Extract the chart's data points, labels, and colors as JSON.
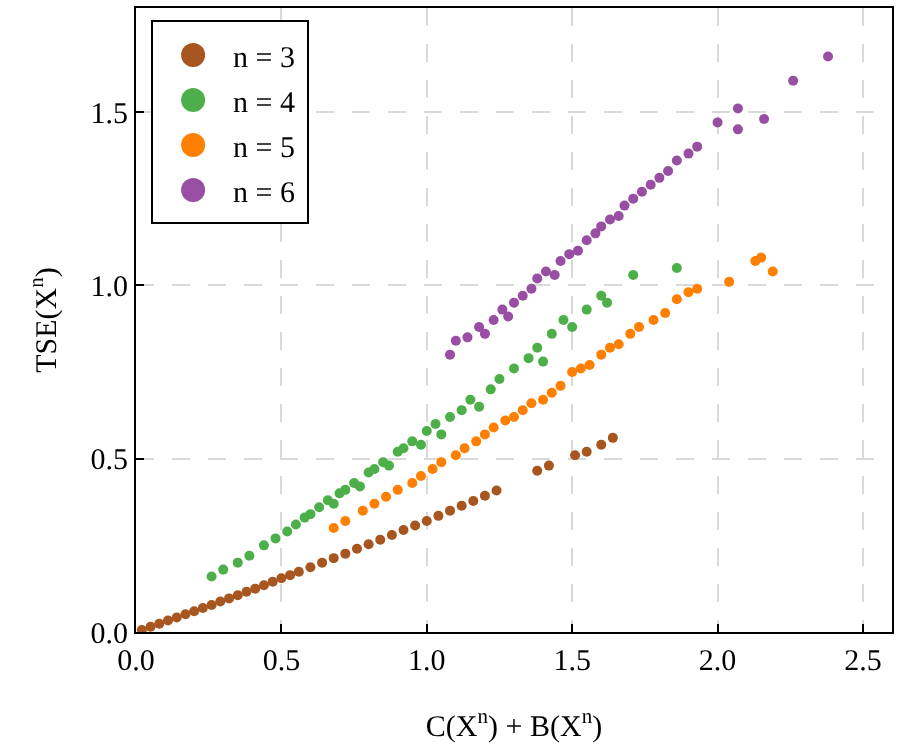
{
  "chart_data": {
    "type": "scatter",
    "xlabel": "C(X$^{n}$) + B(X$^{n}$)",
    "ylabel": "TSE(X$^{n}$)",
    "xlim": [
      0,
      2.6
    ],
    "ylim": [
      0,
      1.8
    ],
    "xticks": [
      {
        "value": 0,
        "label": "0.0"
      },
      0.5,
      {
        "value": 1,
        "label": "1.0"
      },
      1.5,
      {
        "value": 2,
        "label": "2.0"
      },
      2.5
    ],
    "yticks": [
      {
        "value": 0,
        "label": "0.0"
      },
      0.5,
      {
        "value": 1,
        "label": "1.0"
      },
      1.5
    ],
    "grid": true,
    "legend": "top left",
    "marker": "circle",
    "series": [
      {
        "name": "n = 3",
        "color": "#a6561e",
        "x": [
          0.02,
          0.05,
          0.08,
          0.11,
          0.14,
          0.17,
          0.2,
          0.23,
          0.26,
          0.29,
          0.32,
          0.35,
          0.38,
          0.41,
          0.44,
          0.47,
          0.5,
          0.53,
          0.56,
          0.6,
          0.64,
          0.68,
          0.72,
          0.76,
          0.8,
          0.84,
          0.88,
          0.92,
          0.96,
          1.0,
          1.04,
          1.08,
          1.12,
          1.16,
          1.2,
          1.24,
          1.38,
          1.42,
          1.51,
          1.55,
          1.6,
          1.64
        ],
        "values": [
          0.006,
          0.015,
          0.024,
          0.033,
          0.042,
          0.051,
          0.06,
          0.069,
          0.078,
          0.088,
          0.097,
          0.106,
          0.116,
          0.125,
          0.135,
          0.145,
          0.155,
          0.164,
          0.174,
          0.187,
          0.2,
          0.213,
          0.226,
          0.24,
          0.253,
          0.266,
          0.28,
          0.294,
          0.307,
          0.32,
          0.335,
          0.35,
          0.364,
          0.378,
          0.393,
          0.408,
          0.465,
          0.48,
          0.51,
          0.52,
          0.54,
          0.56
        ]
      },
      {
        "name": "n = 4",
        "color": "#4daf4a",
        "x": [
          0.26,
          0.3,
          0.35,
          0.39,
          0.44,
          0.48,
          0.52,
          0.55,
          0.58,
          0.6,
          0.63,
          0.66,
          0.68,
          0.7,
          0.72,
          0.75,
          0.77,
          0.8,
          0.82,
          0.85,
          0.87,
          0.9,
          0.92,
          0.95,
          0.98,
          1.0,
          1.03,
          1.05,
          1.08,
          1.12,
          1.15,
          1.18,
          1.22,
          1.25,
          1.3,
          1.35,
          1.4,
          1.38,
          1.43,
          1.47,
          1.5,
          1.55,
          1.6,
          1.62,
          1.71,
          1.86
        ],
        "values": [
          0.16,
          0.18,
          0.2,
          0.22,
          0.25,
          0.27,
          0.29,
          0.31,
          0.33,
          0.34,
          0.36,
          0.38,
          0.37,
          0.4,
          0.41,
          0.43,
          0.42,
          0.46,
          0.47,
          0.49,
          0.48,
          0.52,
          0.53,
          0.55,
          0.54,
          0.58,
          0.6,
          0.57,
          0.62,
          0.64,
          0.67,
          0.65,
          0.7,
          0.73,
          0.76,
          0.79,
          0.78,
          0.82,
          0.86,
          0.9,
          0.88,
          0.93,
          0.97,
          0.95,
          1.03,
          1.05
        ]
      },
      {
        "name": "n = 5",
        "color": "#ff7f00",
        "x": [
          0.68,
          0.72,
          0.78,
          0.82,
          0.86,
          0.9,
          0.95,
          0.98,
          1.02,
          1.05,
          1.1,
          1.13,
          1.17,
          1.2,
          1.23,
          1.27,
          1.3,
          1.33,
          1.36,
          1.4,
          1.43,
          1.46,
          1.5,
          1.53,
          1.56,
          1.6,
          1.63,
          1.66,
          1.7,
          1.73,
          1.78,
          1.82,
          1.86,
          1.9,
          1.93,
          2.04,
          2.13,
          2.15,
          2.19
        ],
        "values": [
          0.3,
          0.32,
          0.35,
          0.37,
          0.39,
          0.41,
          0.43,
          0.45,
          0.47,
          0.49,
          0.51,
          0.53,
          0.55,
          0.57,
          0.59,
          0.61,
          0.62,
          0.64,
          0.66,
          0.67,
          0.69,
          0.71,
          0.75,
          0.76,
          0.77,
          0.8,
          0.82,
          0.83,
          0.86,
          0.88,
          0.9,
          0.92,
          0.96,
          0.98,
          0.99,
          1.01,
          1.07,
          1.08,
          1.04
        ]
      },
      {
        "name": "n = 6",
        "color": "#984ea3",
        "x": [
          1.08,
          1.1,
          1.14,
          1.18,
          1.2,
          1.23,
          1.26,
          1.28,
          1.3,
          1.33,
          1.36,
          1.38,
          1.41,
          1.44,
          1.46,
          1.49,
          1.52,
          1.55,
          1.58,
          1.6,
          1.63,
          1.66,
          1.68,
          1.71,
          1.74,
          1.77,
          1.8,
          1.83,
          1.86,
          1.9,
          1.93,
          2.0,
          2.07,
          2.07,
          2.16,
          2.26,
          2.38
        ],
        "values": [
          0.8,
          0.84,
          0.85,
          0.88,
          0.86,
          0.9,
          0.93,
          0.91,
          0.95,
          0.97,
          0.99,
          1.02,
          1.04,
          1.03,
          1.07,
          1.09,
          1.1,
          1.13,
          1.15,
          1.17,
          1.19,
          1.2,
          1.23,
          1.25,
          1.27,
          1.29,
          1.31,
          1.33,
          1.36,
          1.38,
          1.4,
          1.47,
          1.51,
          1.45,
          1.48,
          1.59,
          1.66
        ]
      }
    ]
  }
}
